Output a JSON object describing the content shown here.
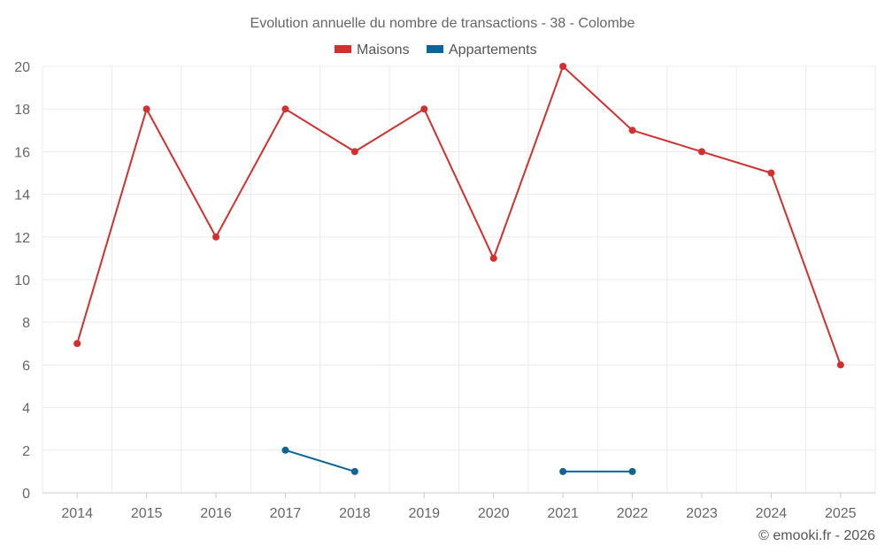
{
  "chart_data": {
    "type": "line",
    "title": "Evolution annuelle du nombre de transactions - 38 - Colombe",
    "categories": [
      "2014",
      "2015",
      "2016",
      "2017",
      "2018",
      "2019",
      "2020",
      "2021",
      "2022",
      "2023",
      "2024",
      "2025"
    ],
    "series": [
      {
        "name": "Maisons",
        "color": "#d32f2f",
        "values": [
          7,
          18,
          12,
          18,
          16,
          18,
          11,
          20,
          17,
          16,
          15,
          6
        ]
      },
      {
        "name": "Appartements",
        "color": "#0d6496",
        "values": [
          null,
          null,
          null,
          2,
          1,
          null,
          null,
          1,
          1,
          null,
          null,
          null
        ]
      }
    ],
    "ylim": [
      0,
      20
    ],
    "yticks": [
      0,
      2,
      4,
      6,
      8,
      10,
      12,
      14,
      16,
      18,
      20
    ],
    "xlabel": "",
    "ylabel": "",
    "grid": true,
    "legend": "top-center"
  },
  "credit": "© emooki.fr - 2026"
}
